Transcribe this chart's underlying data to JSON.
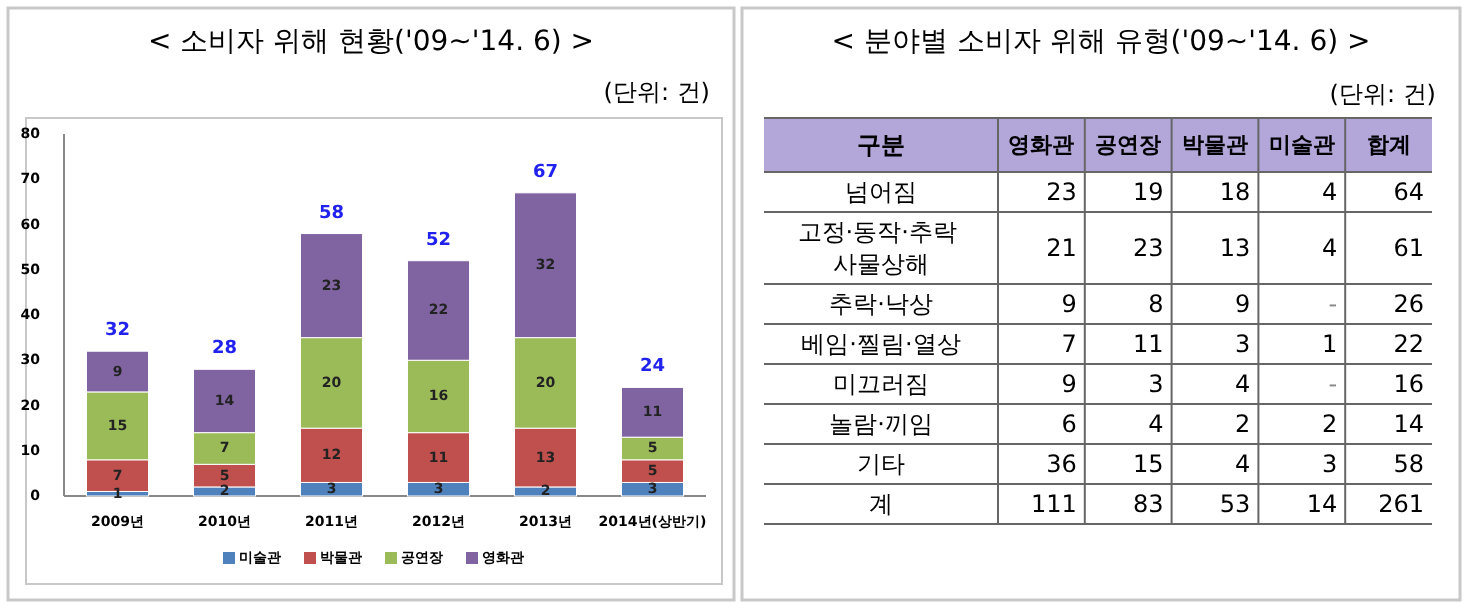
{
  "chart_data": [
    {
      "type": "bar",
      "title": "< 소비자 위해 현황('09~'14. 6) >",
      "annotations": [
        "(단위: 건)"
      ],
      "categories": [
        "2009년",
        "2010년",
        "2011년",
        "2012년",
        "2013년",
        "2014년(상반기)"
      ],
      "stacked": true,
      "data_labels": true,
      "totals": [
        "32",
        "28",
        "58",
        "52",
        "67",
        "24"
      ],
      "ylim": [
        0,
        80
      ],
      "yticks": [
        0,
        10,
        20,
        30,
        40,
        50,
        60,
        70,
        80
      ],
      "legend": "bottom",
      "series": [
        {
          "name": "미술관",
          "color": "#4f81bd",
          "values": [
            1,
            2,
            3,
            3,
            2,
            3
          ]
        },
        {
          "name": "박물관",
          "color": "#c0504d",
          "values": [
            7,
            5,
            12,
            11,
            13,
            5
          ]
        },
        {
          "name": "공연장",
          "color": "#9bbb59",
          "values": [
            15,
            7,
            20,
            16,
            20,
            5
          ]
        },
        {
          "name": "영화관",
          "color": "#8064a2",
          "values": [
            9,
            14,
            23,
            22,
            32,
            11
          ]
        }
      ]
    },
    {
      "type": "other",
      "title": "< 분야별 소비자 위해 유형('09~'14. 6) >",
      "annotations": [
        "(단위: 건)"
      ],
      "ylabel": "구분",
      "data_labels": true,
      "categories": [
        "넘어짐",
        "고정·동작·추락 사물상해",
        "추락·낙상",
        "베임·찔림·열상",
        "미끄러짐",
        "놀람·끼임",
        "기타",
        "계"
      ],
      "series": [
        {
          "name": "영화관",
          "values": [
            23,
            21,
            9,
            7,
            9,
            6,
            36,
            111
          ]
        },
        {
          "name": "공연장",
          "values": [
            19,
            23,
            8,
            11,
            3,
            4,
            15,
            83
          ]
        },
        {
          "name": "박물관",
          "values": [
            18,
            13,
            9,
            3,
            4,
            2,
            4,
            53
          ]
        },
        {
          "name": "미술관",
          "values": [
            4,
            4,
            null,
            1,
            null,
            2,
            3,
            14
          ],
          "value_labels": [
            "4",
            "4",
            "-",
            "1",
            "-",
            "2",
            "3",
            "14"
          ]
        },
        {
          "name": "합계",
          "values": [
            64,
            61,
            26,
            22,
            16,
            14,
            58,
            261
          ]
        }
      ]
    }
  ]
}
